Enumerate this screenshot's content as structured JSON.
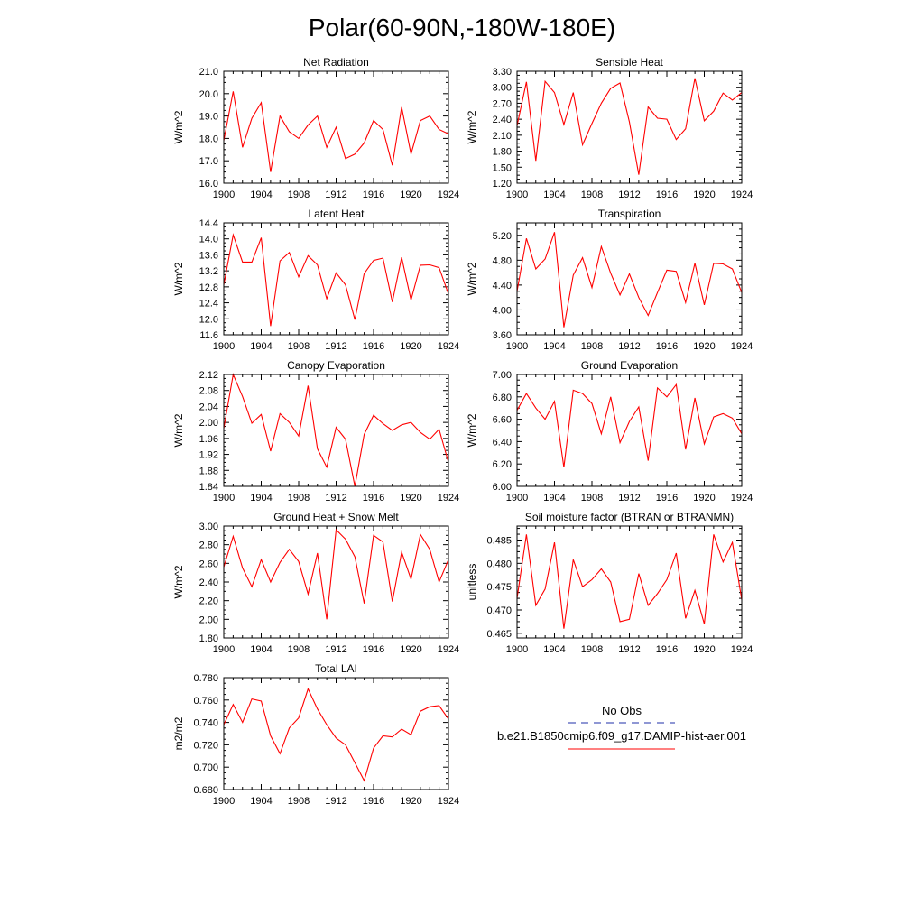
{
  "title": "Polar(60-90N,-180W-180E)",
  "colors": {
    "model": "#ff0000",
    "obs": "#1f2fa8",
    "axis": "#000000"
  },
  "legend": {
    "entries": [
      {
        "label": "No Obs",
        "style": "dashed",
        "color": "#1f2fa8"
      },
      {
        "label": "b.e21.B1850cmip6.f09_g17.DAMIP-hist-aer.001",
        "style": "solid",
        "color": "#ff0000"
      }
    ]
  },
  "chart_data": [
    {
      "type": "line",
      "title": "Net Radiation",
      "ylabel": "W/m^2",
      "xlim": [
        1900,
        1924
      ],
      "ylim": [
        16.0,
        21.0
      ],
      "xticks": [
        "1900",
        "1904",
        "1908",
        "1912",
        "1916",
        "1920",
        "1924"
      ],
      "yticks": [
        "16.0",
        "17.0",
        "18.0",
        "19.0",
        "20.0",
        "21.0"
      ],
      "x": [
        1900,
        1901,
        1902,
        1903,
        1904,
        1905,
        1906,
        1907,
        1908,
        1909,
        1910,
        1911,
        1912,
        1913,
        1914,
        1915,
        1916,
        1917,
        1918,
        1919,
        1920,
        1921,
        1922,
        1923,
        1924
      ],
      "values": [
        17.9,
        20.1,
        17.6,
        18.9,
        19.6,
        16.5,
        19.0,
        18.3,
        18.0,
        18.6,
        19.0,
        17.6,
        18.5,
        17.1,
        17.3,
        17.8,
        18.8,
        18.4,
        16.8,
        19.4,
        17.3,
        18.8,
        19.0,
        18.4,
        18.2
      ]
    },
    {
      "type": "line",
      "title": "Sensible Heat",
      "ylabel": "W/m^2",
      "xlim": [
        1900,
        1924
      ],
      "ylim": [
        1.2,
        3.3
      ],
      "xticks": [
        "1900",
        "1904",
        "1908",
        "1912",
        "1916",
        "1920",
        "1924"
      ],
      "yticks": [
        "1.20",
        "1.50",
        "1.80",
        "2.10",
        "2.40",
        "2.70",
        "3.00",
        "3.30"
      ],
      "x": [
        1900,
        1901,
        1902,
        1903,
        1904,
        1905,
        1906,
        1907,
        1908,
        1909,
        1910,
        1911,
        1912,
        1913,
        1914,
        1915,
        1916,
        1917,
        1918,
        1919,
        1920,
        1921,
        1922,
        1923,
        1924
      ],
      "values": [
        2.28,
        3.1,
        1.62,
        3.11,
        2.9,
        2.3,
        2.9,
        1.92,
        2.32,
        2.7,
        2.98,
        3.08,
        2.35,
        1.36,
        2.63,
        2.42,
        2.4,
        2.02,
        2.22,
        3.17,
        2.37,
        2.55,
        2.89,
        2.76,
        2.9
      ]
    },
    {
      "type": "line",
      "title": "Latent Heat",
      "ylabel": "W/m^2",
      "xlim": [
        1900,
        1924
      ],
      "ylim": [
        11.6,
        14.4
      ],
      "xticks": [
        "1900",
        "1904",
        "1908",
        "1912",
        "1916",
        "1920",
        "1924"
      ],
      "yticks": [
        "11.6",
        "12.0",
        "12.4",
        "12.8",
        "13.2",
        "13.6",
        "14.0",
        "14.4"
      ],
      "x": [
        1900,
        1901,
        1902,
        1903,
        1904,
        1905,
        1906,
        1907,
        1908,
        1909,
        1910,
        1911,
        1912,
        1913,
        1914,
        1915,
        1916,
        1917,
        1918,
        1919,
        1920,
        1921,
        1922,
        1923,
        1924
      ],
      "values": [
        12.85,
        14.1,
        13.42,
        13.42,
        14.03,
        11.82,
        13.45,
        13.66,
        13.05,
        13.58,
        13.35,
        12.5,
        13.15,
        12.85,
        11.98,
        13.13,
        13.46,
        13.52,
        12.42,
        13.54,
        12.47,
        13.34,
        13.35,
        13.28,
        12.62
      ]
    },
    {
      "type": "line",
      "title": "Transpiration",
      "ylabel": "W/m^2",
      "xlim": [
        1900,
        1924
      ],
      "ylim": [
        3.6,
        5.4
      ],
      "xticks": [
        "1900",
        "1904",
        "1908",
        "1912",
        "1916",
        "1920",
        "1924"
      ],
      "yticks": [
        "3.60",
        "4.00",
        "4.40",
        "4.80",
        "5.20"
      ],
      "x": [
        1900,
        1901,
        1902,
        1903,
        1904,
        1905,
        1906,
        1907,
        1908,
        1909,
        1910,
        1911,
        1912,
        1913,
        1914,
        1915,
        1916,
        1917,
        1918,
        1919,
        1920,
        1921,
        1922,
        1923,
        1924
      ],
      "values": [
        4.3,
        5.15,
        4.66,
        4.82,
        5.25,
        3.72,
        4.56,
        4.84,
        4.36,
        5.02,
        4.59,
        4.24,
        4.58,
        4.2,
        3.91,
        4.28,
        4.64,
        4.62,
        4.12,
        4.75,
        4.08,
        4.75,
        4.74,
        4.66,
        4.28
      ]
    },
    {
      "type": "line",
      "title": "Canopy Evaporation",
      "ylabel": "W/m^2",
      "xlim": [
        1900,
        1924
      ],
      "ylim": [
        1.84,
        2.12
      ],
      "xticks": [
        "1900",
        "1904",
        "1908",
        "1912",
        "1916",
        "1920",
        "1924"
      ],
      "yticks": [
        "1.84",
        "1.88",
        "1.92",
        "1.96",
        "2.00",
        "2.04",
        "2.08",
        "2.12"
      ],
      "x": [
        1900,
        1901,
        1902,
        1903,
        1904,
        1905,
        1906,
        1907,
        1908,
        1909,
        1910,
        1911,
        1912,
        1913,
        1914,
        1915,
        1916,
        1917,
        1918,
        1919,
        1920,
        1921,
        1922,
        1923,
        1924
      ],
      "values": [
        1.985,
        2.12,
        2.065,
        1.998,
        2.02,
        1.928,
        2.022,
        2.0,
        1.966,
        2.092,
        1.934,
        1.888,
        1.988,
        1.958,
        1.84,
        1.97,
        2.018,
        1.997,
        1.98,
        1.994,
        2.0,
        1.975,
        1.958,
        1.983,
        1.9
      ]
    },
    {
      "type": "line",
      "title": "Ground Evaporation",
      "ylabel": "W/m^2",
      "xlim": [
        1900,
        1924
      ],
      "ylim": [
        6.0,
        7.0
      ],
      "xticks": [
        "1900",
        "1904",
        "1908",
        "1912",
        "1916",
        "1920",
        "1924"
      ],
      "yticks": [
        "6.00",
        "6.20",
        "6.40",
        "6.60",
        "6.80",
        "7.00"
      ],
      "x": [
        1900,
        1901,
        1902,
        1903,
        1904,
        1905,
        1906,
        1907,
        1908,
        1909,
        1910,
        1911,
        1912,
        1913,
        1914,
        1915,
        1916,
        1917,
        1918,
        1919,
        1920,
        1921,
        1922,
        1923,
        1924
      ],
      "values": [
        6.68,
        6.83,
        6.7,
        6.6,
        6.76,
        6.17,
        6.86,
        6.83,
        6.74,
        6.47,
        6.8,
        6.39,
        6.58,
        6.71,
        6.23,
        6.88,
        6.8,
        6.91,
        6.33,
        6.79,
        6.38,
        6.62,
        6.65,
        6.61,
        6.47
      ]
    },
    {
      "type": "line",
      "title": "Ground Heat + Snow Melt",
      "ylabel": "W/m^2",
      "xlim": [
        1900,
        1924
      ],
      "ylim": [
        1.8,
        3.0
      ],
      "xticks": [
        "1900",
        "1904",
        "1908",
        "1912",
        "1916",
        "1920",
        "1924"
      ],
      "yticks": [
        "1.80",
        "2.00",
        "2.20",
        "2.40",
        "2.60",
        "2.80",
        "3.00"
      ],
      "x": [
        1900,
        1901,
        1902,
        1903,
        1904,
        1905,
        1906,
        1907,
        1908,
        1909,
        1910,
        1911,
        1912,
        1913,
        1914,
        1915,
        1916,
        1917,
        1918,
        1919,
        1920,
        1921,
        1922,
        1923,
        1924
      ],
      "values": [
        2.56,
        2.89,
        2.55,
        2.35,
        2.64,
        2.4,
        2.61,
        2.75,
        2.62,
        2.27,
        2.71,
        2.0,
        2.96,
        2.86,
        2.67,
        2.17,
        2.9,
        2.83,
        2.19,
        2.72,
        2.43,
        2.91,
        2.75,
        2.4,
        2.64
      ]
    },
    {
      "type": "line",
      "title": "Soil moisture factor (BTRAN or BTRANMN)",
      "ylabel": "unitless",
      "xlim": [
        1900,
        1924
      ],
      "ylim": [
        0.464,
        0.488
      ],
      "xticks": [
        "1900",
        "1904",
        "1908",
        "1912",
        "1916",
        "1920",
        "1924"
      ],
      "yticks": [
        "0.465",
        "0.470",
        "0.475",
        "0.480",
        "0.485"
      ],
      "x": [
        1900,
        1901,
        1902,
        1903,
        1904,
        1905,
        1906,
        1907,
        1908,
        1909,
        1910,
        1911,
        1912,
        1913,
        1914,
        1915,
        1916,
        1917,
        1918,
        1919,
        1920,
        1921,
        1922,
        1923,
        1924
      ],
      "values": [
        0.4725,
        0.4862,
        0.471,
        0.4745,
        0.4845,
        0.466,
        0.4808,
        0.475,
        0.4765,
        0.4788,
        0.476,
        0.4675,
        0.468,
        0.4778,
        0.471,
        0.4735,
        0.4765,
        0.4822,
        0.4682,
        0.4742,
        0.467,
        0.4862,
        0.4803,
        0.4845,
        0.4722
      ]
    },
    {
      "type": "line",
      "title": "Total LAI",
      "ylabel": "m2/m2",
      "xlim": [
        1900,
        1924
      ],
      "ylim": [
        0.68,
        0.78
      ],
      "xticks": [
        "1900",
        "1904",
        "1908",
        "1912",
        "1916",
        "1920",
        "1924"
      ],
      "yticks": [
        "0.680",
        "0.700",
        "0.720",
        "0.740",
        "0.760",
        "0.780"
      ],
      "x": [
        1900,
        1901,
        1902,
        1903,
        1904,
        1905,
        1906,
        1907,
        1908,
        1909,
        1910,
        1911,
        1912,
        1913,
        1914,
        1915,
        1916,
        1917,
        1918,
        1919,
        1920,
        1921,
        1922,
        1923,
        1924
      ],
      "values": [
        0.738,
        0.756,
        0.74,
        0.761,
        0.759,
        0.728,
        0.712,
        0.735,
        0.744,
        0.77,
        0.752,
        0.738,
        0.726,
        0.72,
        0.704,
        0.688,
        0.717,
        0.728,
        0.727,
        0.734,
        0.729,
        0.75,
        0.754,
        0.755,
        0.743
      ]
    }
  ]
}
